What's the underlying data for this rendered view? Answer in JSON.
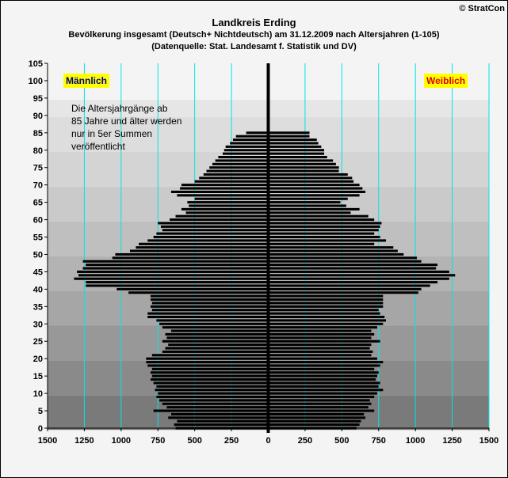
{
  "brand": "© StratCon",
  "chart_data": {
    "type": "bar",
    "orientation": "horizontal",
    "title": "Landkreis Erding",
    "subtitle": "Bevölkerung  insgesamt (Deutsch+ Nichtdeutsch) am 31.12.2009 nach Altersjahren (1-105)",
    "source": "(Datenquelle: Stat. Landesamt f. Statistik und DV)",
    "xlim": [
      -1500,
      1500
    ],
    "ylim": [
      0,
      105
    ],
    "x_ticks": [
      1500,
      1250,
      1000,
      750,
      500,
      250,
      0,
      250,
      500,
      750,
      1000,
      1250,
      1500
    ],
    "y_ticks": [
      0,
      5,
      10,
      15,
      20,
      25,
      30,
      35,
      40,
      45,
      50,
      55,
      60,
      65,
      70,
      75,
      80,
      85,
      90,
      95,
      100,
      105
    ],
    "labels": {
      "male": "Männlich",
      "female": "Weiblich"
    },
    "note": [
      "Die Altersjahrgänge ab",
      "85 Jahre und älter werden",
      "nur in 5er Summen",
      "veröffentlicht"
    ],
    "ages": [
      0,
      1,
      2,
      3,
      4,
      5,
      6,
      7,
      8,
      9,
      10,
      11,
      12,
      13,
      14,
      15,
      16,
      17,
      18,
      19,
      20,
      21,
      22,
      23,
      24,
      25,
      26,
      27,
      28,
      29,
      30,
      31,
      32,
      33,
      34,
      35,
      36,
      37,
      38,
      39,
      40,
      41,
      42,
      43,
      44,
      45,
      46,
      47,
      48,
      49,
      50,
      51,
      52,
      53,
      54,
      55,
      56,
      57,
      58,
      59,
      60,
      61,
      62,
      63,
      64,
      65,
      66,
      67,
      68,
      69,
      70,
      71,
      72,
      73,
      74,
      75,
      76,
      77,
      78,
      79,
      80,
      81,
      82,
      83,
      84,
      85
    ],
    "series": [
      {
        "name": "Männlich",
        "values": [
          630,
          640,
          620,
          680,
          660,
          780,
          690,
          720,
          740,
          760,
          750,
          770,
          760,
          780,
          800,
          790,
          800,
          790,
          820,
          830,
          830,
          790,
          720,
          700,
          680,
          720,
          690,
          700,
          660,
          720,
          740,
          760,
          820,
          820,
          790,
          800,
          790,
          800,
          800,
          950,
          1030,
          1240,
          1240,
          1320,
          1290,
          1300,
          1260,
          1240,
          1260,
          1060,
          1040,
          940,
          900,
          880,
          820,
          780,
          760,
          720,
          730,
          750,
          670,
          630,
          560,
          590,
          540,
          550,
          500,
          620,
          660,
          600,
          590,
          500,
          470,
          440,
          420,
          400,
          380,
          360,
          340,
          310,
          300,
          290,
          260,
          240,
          220,
          150
        ]
      },
      {
        "name": "Weiblich",
        "values": [
          600,
          620,
          630,
          660,
          650,
          720,
          680,
          700,
          690,
          720,
          740,
          780,
          750,
          760,
          730,
          740,
          750,
          720,
          760,
          780,
          740,
          700,
          710,
          690,
          700,
          760,
          700,
          720,
          700,
          740,
          780,
          800,
          790,
          760,
          750,
          780,
          780,
          780,
          780,
          1020,
          1040,
          1100,
          1150,
          1230,
          1270,
          1230,
          1140,
          1150,
          1040,
          1010,
          920,
          880,
          850,
          720,
          800,
          760,
          720,
          750,
          760,
          770,
          720,
          680,
          560,
          620,
          530,
          490,
          540,
          620,
          660,
          640,
          620,
          580,
          570,
          540,
          480,
          480,
          460,
          440,
          400,
          380,
          380,
          360,
          340,
          330,
          280,
          280
        ]
      }
    ],
    "gridlines_x": [
      -1250,
      -1000,
      -750,
      -500,
      -250,
      250,
      500,
      750,
      1000,
      1250,
      1500
    ],
    "background_bands": true
  }
}
